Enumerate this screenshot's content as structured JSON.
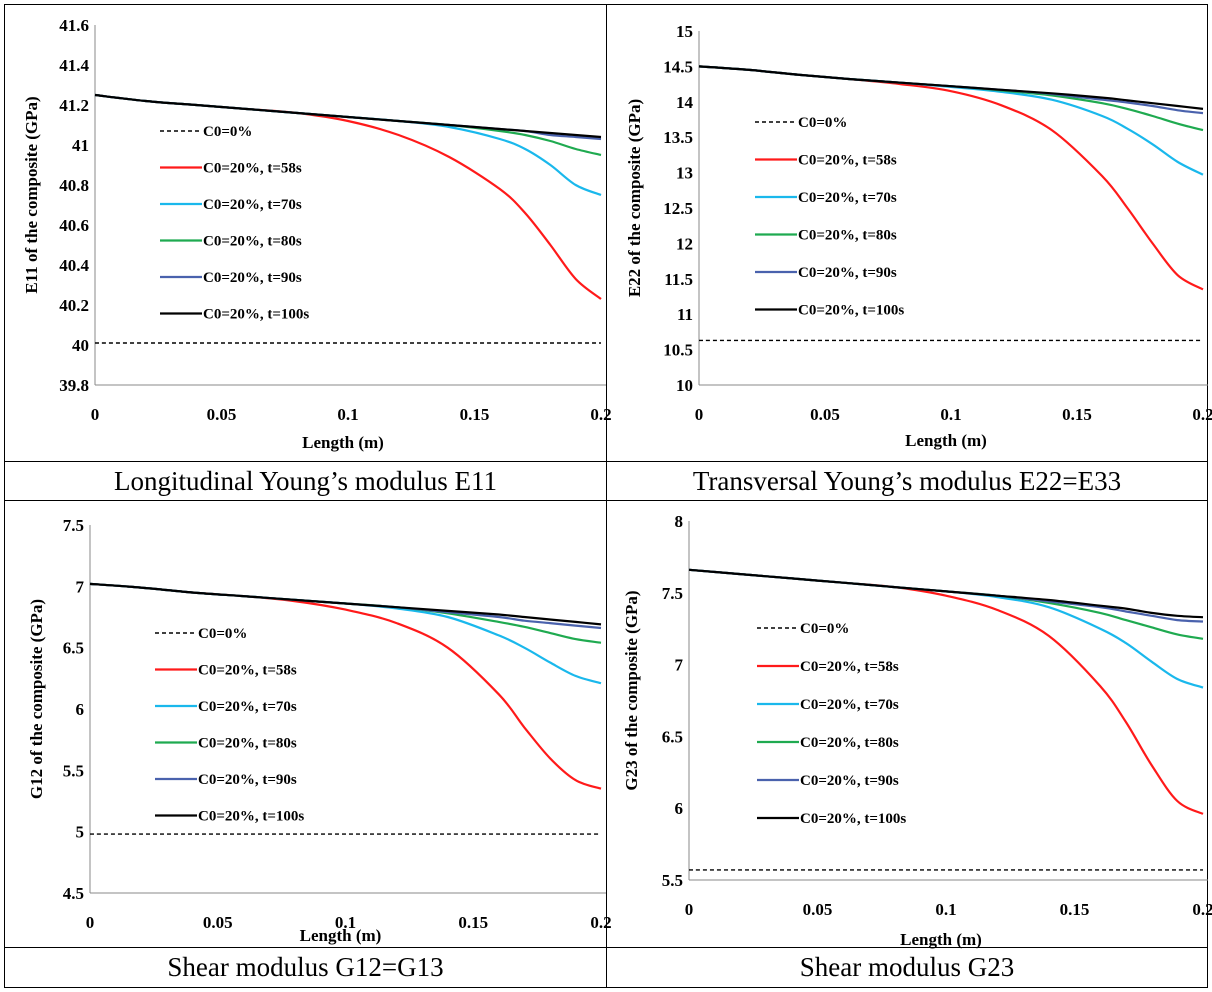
{
  "figures": [
    {
      "caption": "Longitudinal Young’s modulus E11"
    },
    {
      "caption": "Transversal Young’s modulus E22=E33"
    },
    {
      "caption": "Shear modulus G12=G13"
    },
    {
      "caption": "Shear modulus G23"
    }
  ],
  "legend_labels": [
    "C0=0%",
    "C0=20%, t=58s",
    "C0=20%, t=70s",
    "C0=20%, t=80s",
    "C0=20%, t=90s",
    "C0=20%, t=100s"
  ],
  "series_colors": [
    "#000000",
    "#ff1a1a",
    "#1ab8ec",
    "#1faa50",
    "#4a62ad",
    "#000000"
  ],
  "chart_data": [
    {
      "type": "line",
      "xlabel": "Length (m)",
      "ylabel": "E11 of the composite (GPa)",
      "xlim": [
        0,
        0.2
      ],
      "ylim": [
        39.8,
        41.6
      ],
      "x_ticks": [
        "0",
        "0.05",
        "0.1",
        "0.15",
        "0.2"
      ],
      "y_ticks": [
        "39.8",
        "40",
        "40.2",
        "40.4",
        "40.6",
        "40.8",
        "41",
        "41.2",
        "41.4",
        "41.6"
      ],
      "x": [
        0,
        0.02,
        0.04,
        0.06,
        0.08,
        0.1,
        0.12,
        0.14,
        0.16,
        0.17,
        0.18,
        0.19,
        0.2
      ],
      "series": [
        {
          "name": "C0=0%",
          "values": [
            40.01,
            40.01,
            40.01,
            40.01,
            40.01,
            40.01,
            40.01,
            40.01,
            40.01,
            40.01,
            40.01,
            40.01,
            40.01
          ]
        },
        {
          "name": "C0=20%, t=58s",
          "values": [
            41.25,
            41.22,
            41.2,
            41.18,
            41.16,
            41.12,
            41.05,
            40.94,
            40.78,
            40.66,
            40.5,
            40.33,
            40.23
          ]
        },
        {
          "name": "C0=20%, t=70s",
          "values": [
            41.25,
            41.22,
            41.2,
            41.18,
            41.16,
            41.14,
            41.12,
            41.09,
            41.03,
            40.98,
            40.9,
            40.8,
            40.75
          ]
        },
        {
          "name": "C0=20%, t=80s",
          "values": [
            41.25,
            41.22,
            41.2,
            41.18,
            41.16,
            41.14,
            41.12,
            41.1,
            41.07,
            41.05,
            41.02,
            40.98,
            40.95
          ]
        },
        {
          "name": "C0=20%, t=90s",
          "values": [
            41.25,
            41.22,
            41.2,
            41.18,
            41.16,
            41.14,
            41.12,
            41.1,
            41.08,
            41.07,
            41.05,
            41.04,
            41.03
          ]
        },
        {
          "name": "C0=20%, t=100s",
          "values": [
            41.25,
            41.22,
            41.2,
            41.18,
            41.16,
            41.14,
            41.12,
            41.1,
            41.08,
            41.07,
            41.06,
            41.05,
            41.04
          ]
        }
      ]
    },
    {
      "type": "line",
      "xlabel": "Length (m)",
      "ylabel": "E22 of the composite (GPa)",
      "xlim": [
        0,
        0.2
      ],
      "ylim": [
        10,
        15
      ],
      "x_ticks": [
        "0",
        "0.05",
        "0.1",
        "0.15",
        "0.2"
      ],
      "y_ticks": [
        "10",
        "10.5",
        "11",
        "11.5",
        "12",
        "12.5",
        "13",
        "13.5",
        "14",
        "14.5",
        "15"
      ],
      "x": [
        0,
        0.02,
        0.04,
        0.06,
        0.08,
        0.1,
        0.12,
        0.14,
        0.16,
        0.17,
        0.18,
        0.19,
        0.2
      ],
      "series": [
        {
          "name": "C0=0%",
          "values": [
            10.63,
            10.63,
            10.63,
            10.63,
            10.63,
            10.63,
            10.63,
            10.63,
            10.63,
            10.63,
            10.63,
            10.63,
            10.63
          ]
        },
        {
          "name": "C0=20%, t=58s",
          "values": [
            14.5,
            14.45,
            14.38,
            14.32,
            14.25,
            14.15,
            13.95,
            13.6,
            12.95,
            12.5,
            12.0,
            11.55,
            11.35
          ]
        },
        {
          "name": "C0=20%, t=70s",
          "values": [
            14.5,
            14.45,
            14.38,
            14.32,
            14.27,
            14.21,
            14.14,
            14.03,
            13.8,
            13.62,
            13.4,
            13.15,
            12.97
          ]
        },
        {
          "name": "C0=20%, t=80s",
          "values": [
            14.5,
            14.45,
            14.38,
            14.32,
            14.27,
            14.22,
            14.16,
            14.09,
            13.98,
            13.9,
            13.8,
            13.69,
            13.6
          ]
        },
        {
          "name": "C0=20%, t=90s",
          "values": [
            14.5,
            14.45,
            14.38,
            14.32,
            14.27,
            14.22,
            14.17,
            14.11,
            14.03,
            13.99,
            13.94,
            13.88,
            13.84
          ]
        },
        {
          "name": "C0=20%, t=100s",
          "values": [
            14.5,
            14.45,
            14.38,
            14.32,
            14.27,
            14.22,
            14.17,
            14.12,
            14.06,
            14.02,
            13.98,
            13.94,
            13.9
          ]
        }
      ]
    },
    {
      "type": "line",
      "xlabel": "Length (m)",
      "ylabel": "G12 of the composite (GPa)",
      "xlim": [
        0,
        0.2
      ],
      "ylim": [
        4.5,
        7.5
      ],
      "x_ticks": [
        "0",
        "0.05",
        "0.1",
        "0.15",
        "0.2"
      ],
      "y_ticks": [
        "4.5",
        "5",
        "5.5",
        "6",
        "6.5",
        "7",
        "7.5"
      ],
      "x": [
        0,
        0.02,
        0.04,
        0.06,
        0.08,
        0.1,
        0.12,
        0.14,
        0.16,
        0.17,
        0.18,
        0.19,
        0.2
      ],
      "series": [
        {
          "name": "C0=0%",
          "values": [
            4.98,
            4.98,
            4.98,
            4.98,
            4.98,
            4.98,
            4.98,
            4.98,
            4.98,
            4.98,
            4.98,
            4.98,
            4.98
          ]
        },
        {
          "name": "C0=20%, t=58s",
          "values": [
            7.02,
            6.99,
            6.95,
            6.92,
            6.88,
            6.81,
            6.7,
            6.5,
            6.12,
            5.85,
            5.6,
            5.42,
            5.35
          ]
        },
        {
          "name": "C0=20%, t=70s",
          "values": [
            7.02,
            6.99,
            6.95,
            6.92,
            6.89,
            6.86,
            6.82,
            6.75,
            6.6,
            6.5,
            6.38,
            6.27,
            6.21
          ]
        },
        {
          "name": "C0=20%, t=80s",
          "values": [
            7.02,
            6.99,
            6.95,
            6.92,
            6.89,
            6.86,
            6.83,
            6.78,
            6.71,
            6.67,
            6.62,
            6.57,
            6.54
          ]
        },
        {
          "name": "C0=20%, t=90s",
          "values": [
            7.02,
            6.99,
            6.95,
            6.92,
            6.89,
            6.86,
            6.83,
            6.79,
            6.75,
            6.72,
            6.7,
            6.68,
            6.66
          ]
        },
        {
          "name": "C0=20%, t=100s",
          "values": [
            7.02,
            6.99,
            6.95,
            6.92,
            6.89,
            6.86,
            6.83,
            6.8,
            6.77,
            6.75,
            6.73,
            6.71,
            6.69
          ]
        }
      ]
    },
    {
      "type": "line",
      "xlabel": "Length (m)",
      "ylabel": "G23 of the composite (GPa)",
      "xlim": [
        0,
        0.2
      ],
      "ylim": [
        5.5,
        8
      ],
      "x_ticks": [
        "0",
        "0.05",
        "0.1",
        "0.15",
        "0.2"
      ],
      "y_ticks": [
        "5.5",
        "6",
        "6.5",
        "7",
        "7.5",
        "8"
      ],
      "x": [
        0,
        0.02,
        0.04,
        0.06,
        0.08,
        0.1,
        0.12,
        0.14,
        0.16,
        0.17,
        0.18,
        0.19,
        0.2
      ],
      "series": [
        {
          "name": "C0=0%",
          "values": [
            5.57,
            5.57,
            5.57,
            5.57,
            5.57,
            5.57,
            5.57,
            5.57,
            5.57,
            5.57,
            5.57,
            5.57,
            5.57
          ]
        },
        {
          "name": "C0=20%, t=58s",
          "values": [
            7.66,
            7.63,
            7.6,
            7.57,
            7.54,
            7.48,
            7.38,
            7.2,
            6.85,
            6.6,
            6.3,
            6.05,
            5.96
          ]
        },
        {
          "name": "C0=20%, t=70s",
          "values": [
            7.66,
            7.63,
            7.6,
            7.57,
            7.54,
            7.51,
            7.47,
            7.4,
            7.25,
            7.15,
            7.02,
            6.9,
            6.84
          ]
        },
        {
          "name": "C0=20%, t=80s",
          "values": [
            7.66,
            7.63,
            7.6,
            7.57,
            7.54,
            7.51,
            7.48,
            7.43,
            7.36,
            7.31,
            7.26,
            7.21,
            7.18
          ]
        },
        {
          "name": "C0=20%, t=90s",
          "values": [
            7.66,
            7.63,
            7.6,
            7.57,
            7.54,
            7.51,
            7.48,
            7.44,
            7.4,
            7.37,
            7.34,
            7.31,
            7.3
          ]
        },
        {
          "name": "C0=20%, t=100s",
          "values": [
            7.66,
            7.63,
            7.6,
            7.57,
            7.54,
            7.51,
            7.48,
            7.45,
            7.41,
            7.39,
            7.36,
            7.34,
            7.33
          ]
        }
      ]
    }
  ]
}
